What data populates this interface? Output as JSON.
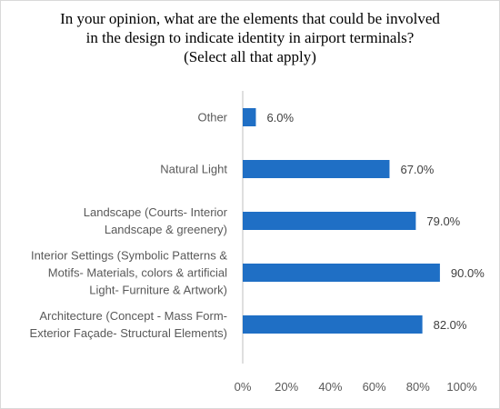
{
  "chart_data": {
    "type": "bar",
    "orientation": "horizontal",
    "title_lines": [
      "In your opinion, what are the elements that could be involved",
      "in the design to indicate identity in airport terminals?",
      "(Select all that apply)"
    ],
    "categories": [
      {
        "label_lines": [
          "Other"
        ]
      },
      {
        "label_lines": [
          "Natural Light"
        ]
      },
      {
        "label_lines": [
          "Landscape (Courts- Interior",
          "Landscape & greenery)"
        ]
      },
      {
        "label_lines": [
          "Interior Settings (Symbolic Patterns &",
          "Motifs- Materials, colors & artificial",
          "Light- Furniture & Artwork)"
        ]
      },
      {
        "label_lines": [
          "Architecture (Concept - Mass Form-",
          "Exterior Façade- Structural Elements)"
        ]
      }
    ],
    "values": [
      6.0,
      67.0,
      79.0,
      90.0,
      82.0
    ],
    "value_labels": [
      "6.0%",
      "67.0%",
      "79.0%",
      "90.0%",
      "82.0%"
    ],
    "xlim": [
      0,
      100
    ],
    "ticks": [
      {
        "value": 0,
        "label": "0%"
      },
      {
        "value": 20,
        "label": "20%"
      },
      {
        "value": 40,
        "label": "40%"
      },
      {
        "value": 60,
        "label": "60%"
      },
      {
        "value": 80,
        "label": "80%"
      },
      {
        "value": 100,
        "label": "100%"
      }
    ],
    "grid": false,
    "legend": "none",
    "bar_color": "#1f6fc5",
    "axis_color": "#bfbfbf"
  }
}
